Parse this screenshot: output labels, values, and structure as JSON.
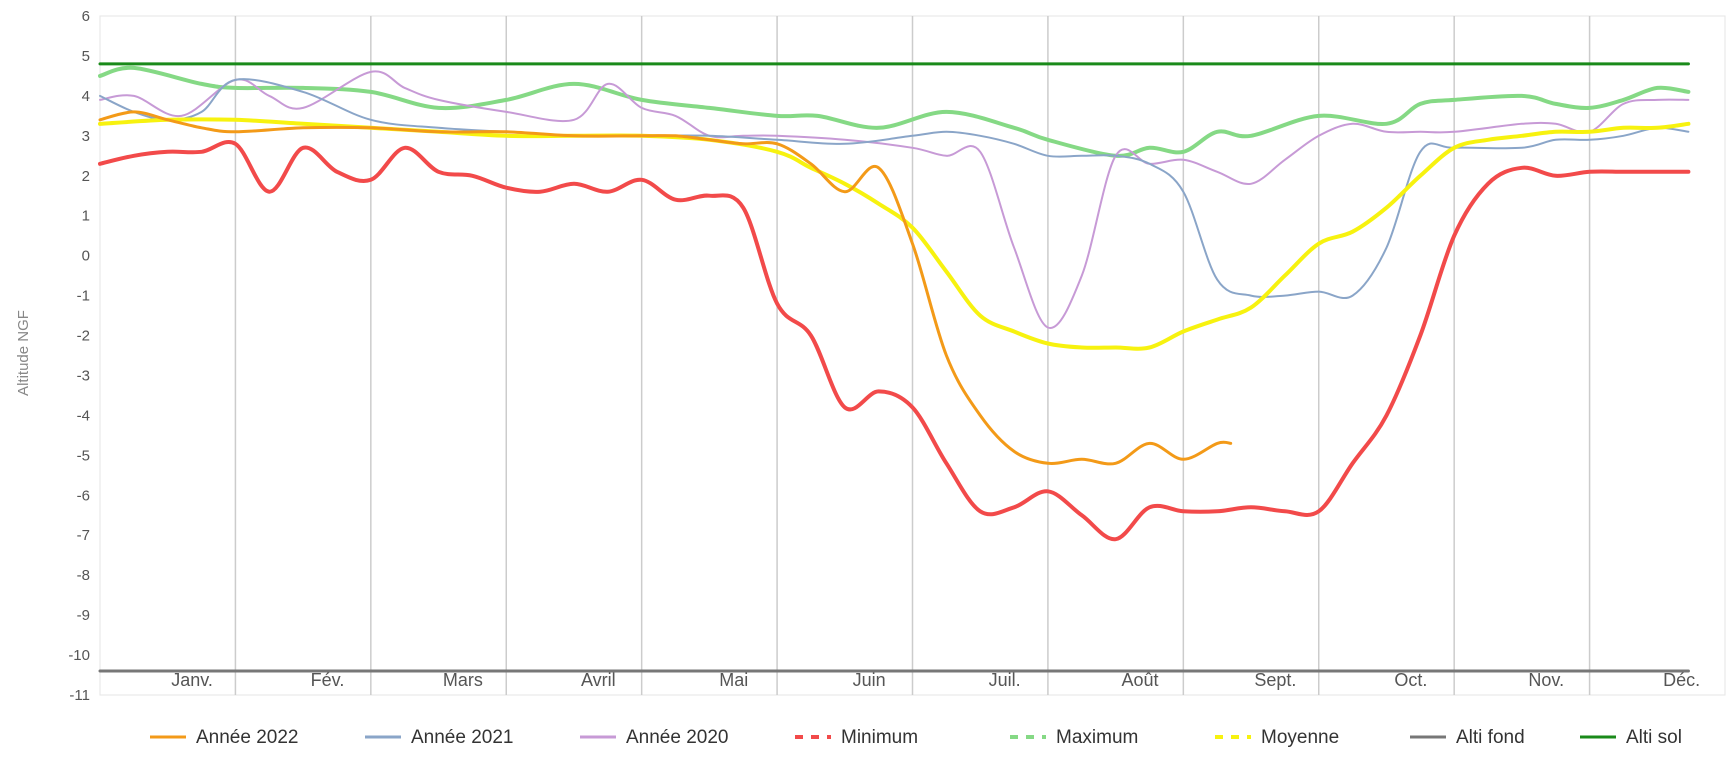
{
  "chart_data": {
    "type": "line",
    "ylabel": "Altitude NGF",
    "ylim": [
      -11,
      6
    ],
    "yticks": [
      6,
      5,
      4,
      3,
      2,
      1,
      0,
      -1,
      -2,
      -3,
      -4,
      -5,
      -6,
      -7,
      -8,
      -9,
      -10,
      -11
    ],
    "xlim": [
      0,
      12
    ],
    "months": [
      "Janv.",
      "Fév.",
      "Mars",
      "Avril",
      "Mai",
      "Juin",
      "Juil.",
      "Août",
      "Sept.",
      "Oct.",
      "Nov.",
      "Déc."
    ],
    "grid": "vertical",
    "legend_position": "bottom",
    "series": [
      {
        "name": "Alti sol",
        "color": "#1a8a1a",
        "style": "solid",
        "width": 3,
        "x": [
          0,
          11.73
        ],
        "y": [
          4.8,
          4.8
        ]
      },
      {
        "name": "Alti fond",
        "color": "#777777",
        "style": "solid",
        "width": 3,
        "x": [
          0,
          11.73
        ],
        "y": [
          -10.4,
          -10.4
        ]
      },
      {
        "name": "Maximum",
        "color": "#85d985",
        "style": "dashed",
        "width": 4,
        "x": [
          0,
          0.25,
          0.75,
          1.0,
          1.5,
          2.0,
          2.5,
          3.0,
          3.5,
          4.0,
          4.5,
          5.0,
          5.3,
          5.75,
          6.25,
          6.75,
          7.0,
          7.5,
          7.75,
          8.0,
          8.25,
          8.5,
          9.0,
          9.5,
          9.75,
          10.0,
          10.5,
          10.75,
          11.0,
          11.25,
          11.5,
          11.73
        ],
        "y": [
          4.5,
          4.7,
          4.3,
          4.2,
          4.2,
          4.1,
          3.7,
          3.9,
          4.3,
          3.9,
          3.7,
          3.5,
          3.5,
          3.2,
          3.6,
          3.2,
          2.9,
          2.5,
          2.7,
          2.6,
          3.1,
          3.0,
          3.5,
          3.3,
          3.8,
          3.9,
          4.0,
          3.8,
          3.7,
          3.9,
          4.2,
          4.1
        ]
      },
      {
        "name": "Année 2020",
        "color": "#c79ad6",
        "style": "solid",
        "width": 2,
        "x": [
          0,
          0.25,
          0.6,
          1.0,
          1.25,
          1.5,
          2.0,
          2.25,
          2.5,
          3.0,
          3.5,
          3.75,
          4.0,
          4.25,
          4.5,
          4.75,
          5.0,
          5.5,
          6.0,
          6.25,
          6.5,
          6.75,
          7.0,
          7.25,
          7.5,
          7.75,
          8.0,
          8.25,
          8.5,
          8.75,
          9.0,
          9.25,
          9.5,
          9.75,
          10.0,
          10.5,
          10.75,
          11.0,
          11.25,
          11.5,
          11.73
        ],
        "y": [
          3.9,
          4.0,
          3.5,
          4.4,
          4.0,
          3.7,
          4.6,
          4.2,
          3.9,
          3.6,
          3.4,
          4.3,
          3.7,
          3.5,
          3.0,
          3.0,
          3.0,
          2.9,
          2.7,
          2.5,
          2.6,
          0.2,
          -1.8,
          -0.5,
          2.5,
          2.3,
          2.4,
          2.1,
          1.8,
          2.4,
          3.0,
          3.3,
          3.1,
          3.1,
          3.1,
          3.3,
          3.3,
          3.1,
          3.8,
          3.9,
          3.9
        ]
      },
      {
        "name": "Année 2021",
        "color": "#8aa5c8",
        "style": "solid",
        "width": 2,
        "x": [
          0,
          0.25,
          0.5,
          0.75,
          1.0,
          1.5,
          2.0,
          2.5,
          3.0,
          3.5,
          4.0,
          4.5,
          5.0,
          5.5,
          6.0,
          6.25,
          6.5,
          6.75,
          7.0,
          7.25,
          7.5,
          7.75,
          8.0,
          8.25,
          8.5,
          8.75,
          9.0,
          9.25,
          9.5,
          9.75,
          10.0,
          10.5,
          10.75,
          11.0,
          11.25,
          11.5,
          11.73
        ],
        "y": [
          4.0,
          3.6,
          3.4,
          3.6,
          4.4,
          4.1,
          3.4,
          3.2,
          3.1,
          3.0,
          3.0,
          3.0,
          2.9,
          2.8,
          3.0,
          3.1,
          3.0,
          2.8,
          2.5,
          2.5,
          2.5,
          2.3,
          1.6,
          -0.6,
          -1.0,
          -1.0,
          -0.9,
          -1.0,
          0.2,
          2.6,
          2.7,
          2.7,
          2.9,
          2.9,
          3.0,
          3.2,
          3.1
        ]
      },
      {
        "name": "Moyenne",
        "color": "#f7f20f",
        "style": "dashed",
        "width": 4,
        "x": [
          0,
          0.5,
          1.0,
          1.5,
          2.0,
          2.5,
          3.0,
          3.5,
          4.0,
          4.5,
          5.0,
          5.25,
          5.5,
          5.75,
          6.0,
          6.25,
          6.5,
          6.75,
          7.0,
          7.25,
          7.5,
          7.75,
          8.0,
          8.25,
          8.5,
          8.75,
          9.0,
          9.25,
          9.5,
          9.75,
          10.0,
          10.25,
          10.5,
          10.75,
          11.0,
          11.25,
          11.5,
          11.73
        ],
        "y": [
          3.3,
          3.4,
          3.4,
          3.3,
          3.2,
          3.1,
          3.0,
          3.0,
          3.0,
          2.9,
          2.6,
          2.2,
          1.8,
          1.3,
          0.7,
          -0.4,
          -1.5,
          -1.9,
          -2.2,
          -2.3,
          -2.3,
          -2.3,
          -1.9,
          -1.6,
          -1.3,
          -0.5,
          0.3,
          0.6,
          1.2,
          2.0,
          2.7,
          2.9,
          3.0,
          3.1,
          3.1,
          3.2,
          3.2,
          3.3
        ]
      },
      {
        "name": "Année 2022",
        "color": "#f39a18",
        "style": "solid",
        "width": 3,
        "x": [
          0,
          0.25,
          0.5,
          0.75,
          1.0,
          1.5,
          2.0,
          2.5,
          3.0,
          3.5,
          4.0,
          4.25,
          4.5,
          4.75,
          5.0,
          5.25,
          5.5,
          5.75,
          6.0,
          6.25,
          6.5,
          6.75,
          7.0,
          7.25,
          7.5,
          7.75,
          8.0,
          8.25,
          8.35
        ],
        "y": [
          3.4,
          3.6,
          3.4,
          3.2,
          3.1,
          3.2,
          3.2,
          3.1,
          3.1,
          3.0,
          3.0,
          3.0,
          2.9,
          2.8,
          2.8,
          2.3,
          1.6,
          2.2,
          0.3,
          -2.5,
          -4.0,
          -4.9,
          -5.2,
          -5.1,
          -5.2,
          -4.7,
          -5.1,
          -4.7,
          -4.7
        ]
      },
      {
        "name": "Minimum",
        "color": "#f24a4a",
        "style": "dashed",
        "width": 4,
        "x": [
          0,
          0.25,
          0.5,
          0.75,
          1.0,
          1.25,
          1.5,
          1.75,
          2.0,
          2.25,
          2.5,
          2.75,
          3.0,
          3.25,
          3.5,
          3.75,
          4.0,
          4.25,
          4.5,
          4.75,
          5.0,
          5.25,
          5.5,
          5.75,
          6.0,
          6.25,
          6.5,
          6.75,
          7.0,
          7.25,
          7.5,
          7.75,
          8.0,
          8.25,
          8.5,
          8.75,
          9.0,
          9.25,
          9.5,
          9.75,
          10.0,
          10.25,
          10.5,
          10.75,
          11.0,
          11.25,
          11.5,
          11.73
        ],
        "y": [
          2.3,
          2.5,
          2.6,
          2.6,
          2.8,
          1.6,
          2.7,
          2.1,
          1.9,
          2.7,
          2.1,
          2.0,
          1.7,
          1.6,
          1.8,
          1.6,
          1.9,
          1.4,
          1.5,
          1.2,
          -1.2,
          -2.0,
          -3.8,
          -3.4,
          -3.8,
          -5.2,
          -6.4,
          -6.3,
          -5.9,
          -6.5,
          -7.1,
          -6.3,
          -6.4,
          -6.4,
          -6.3,
          -6.4,
          -6.4,
          -5.2,
          -4.0,
          -2.0,
          0.5,
          1.8,
          2.2,
          2.0,
          2.1,
          2.1,
          2.1,
          2.1
        ]
      }
    ],
    "legend": [
      {
        "name": "Année 2022",
        "color": "#f39a18",
        "style": "solid"
      },
      {
        "name": "Année 2021",
        "color": "#8aa5c8",
        "style": "solid"
      },
      {
        "name": "Année 2020",
        "color": "#c79ad6",
        "style": "solid"
      },
      {
        "name": "Minimum",
        "color": "#f24a4a",
        "style": "dashed"
      },
      {
        "name": "Maximum",
        "color": "#85d985",
        "style": "dashed"
      },
      {
        "name": "Moyenne",
        "color": "#f7f20f",
        "style": "dashed"
      },
      {
        "name": "Alti fond",
        "color": "#777777",
        "style": "solid"
      },
      {
        "name": "Alti sol",
        "color": "#1a8a1a",
        "style": "solid"
      }
    ]
  }
}
